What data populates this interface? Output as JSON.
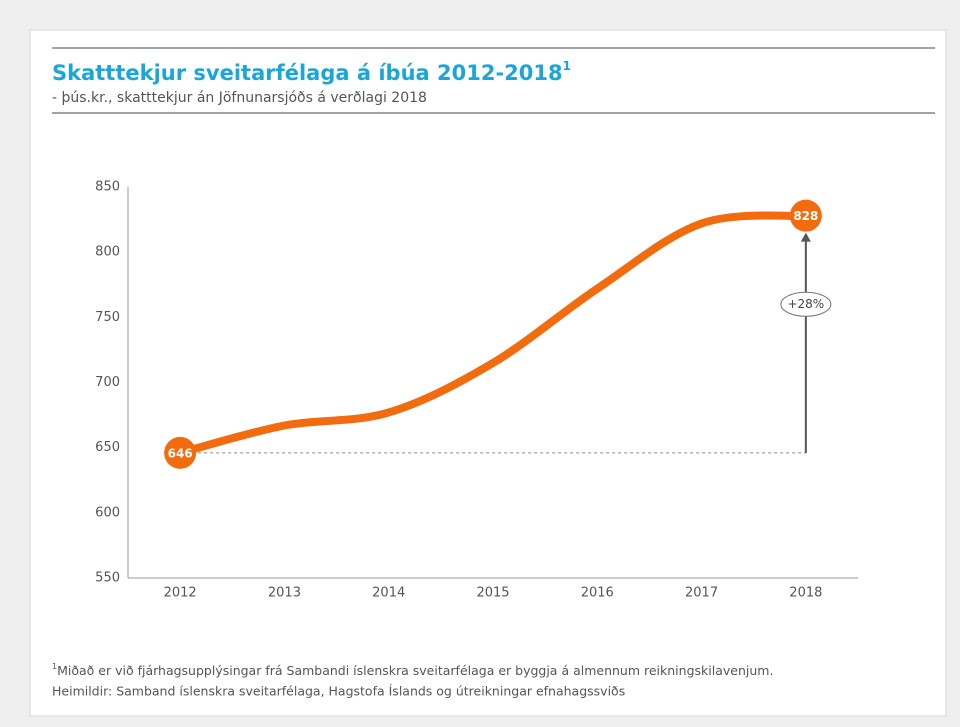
{
  "chart_data": {
    "type": "line",
    "title": "Skatttekjur sveitarfélaga á íbúa 2012-2018",
    "title_note": "1",
    "subtitle": "- þús.kr., skatttekjur án Jöfnunarsjóðs á verðlagi 2018",
    "categories": [
      "2012",
      "2013",
      "2014",
      "2015",
      "2016",
      "2017",
      "2018"
    ],
    "values": [
      646,
      667,
      677,
      715,
      772,
      822,
      828
    ],
    "color": "#f26b0f",
    "ylim": [
      550,
      850
    ],
    "yticks": [
      550,
      600,
      650,
      700,
      750,
      800,
      850
    ],
    "grid": false,
    "annotation": "+28%",
    "footnote_marker": "1",
    "footnote": "Miðað er við fjárhagsupplýsingar frá Sambandi íslenskra sveitarfélaga er byggja á almennum reikningskilavenjum.",
    "source": "Heimildir: Samband íslenskra sveitarfélaga, Hagstofa Íslands og útreikningar efnahagssviðs"
  }
}
